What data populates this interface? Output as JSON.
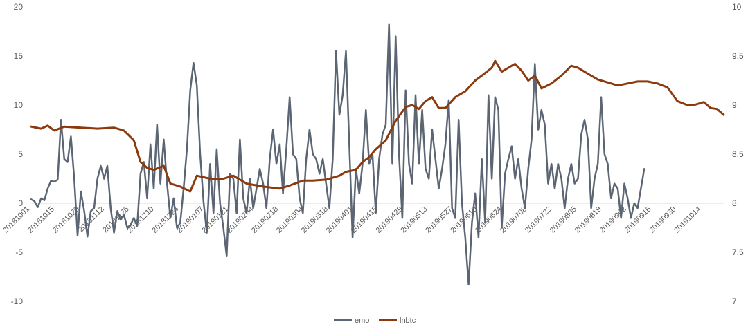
{
  "chart_data": {
    "type": "line",
    "title": "",
    "x_labels": [
      "20181001",
      "20181015",
      "20181029",
      "20181112",
      "20181126",
      "20181210",
      "20181224",
      "20190107",
      "20190121",
      "20190204",
      "20190218",
      "20190304",
      "20190318",
      "20190401",
      "20190415",
      "20190429",
      "20190513",
      "20190527",
      "20190610",
      "20190624",
      "20190708",
      "20190722",
      "20190805",
      "20190819",
      "20190902",
      "20190916",
      "20190930",
      "20191014"
    ],
    "y_left": {
      "min": -10,
      "max": 20,
      "ticks": [
        "-10",
        "-5",
        "0",
        "5",
        "10",
        "15",
        "20"
      ]
    },
    "y_right": {
      "min": 7,
      "max": 10,
      "ticks": [
        "7",
        "7.5",
        "8",
        "8.5",
        "9",
        "9.5",
        "10"
      ]
    },
    "legend_position": "bottom",
    "gridlines": false,
    "series": [
      {
        "name": "emo",
        "axis": "left",
        "color": "#5b6573",
        "points": [
          [
            0,
            0.4
          ],
          [
            2,
            0.2
          ],
          [
            4,
            -0.4
          ],
          [
            6,
            0.5
          ],
          [
            8,
            0.3
          ],
          [
            10,
            1.5
          ],
          [
            12,
            2.3
          ],
          [
            14,
            2.2
          ],
          [
            16,
            2.4
          ],
          [
            18,
            8.5
          ],
          [
            20,
            4.5
          ],
          [
            22,
            4.2
          ],
          [
            24,
            6.8
          ],
          [
            26,
            2.5
          ],
          [
            28,
            -3.3
          ],
          [
            30,
            1.2
          ],
          [
            32,
            -0.8
          ],
          [
            34,
            -3.4
          ],
          [
            36,
            -0.8
          ],
          [
            38,
            -0.5
          ],
          [
            40,
            2.5
          ],
          [
            42,
            3.8
          ],
          [
            44,
            2.5
          ],
          [
            46,
            3.8
          ],
          [
            48,
            -0.5
          ],
          [
            50,
            -3.0
          ],
          [
            52,
            -0.8
          ],
          [
            54,
            -1.7
          ],
          [
            56,
            -1.2
          ],
          [
            58,
            -2.5
          ],
          [
            60,
            -2.2
          ],
          [
            62,
            -1.5
          ],
          [
            64,
            -2.3
          ],
          [
            66,
            3.0
          ],
          [
            68,
            4.2
          ],
          [
            70,
            0.5
          ],
          [
            72,
            6.0
          ],
          [
            74,
            1.5
          ],
          [
            76,
            8.0
          ],
          [
            78,
            2.0
          ],
          [
            80,
            6.5
          ],
          [
            82,
            2.0
          ],
          [
            84,
            -1.5
          ],
          [
            86,
            0.5
          ],
          [
            88,
            -2.5
          ],
          [
            90,
            -2.0
          ],
          [
            92,
            1.5
          ],
          [
            94,
            5.5
          ],
          [
            96,
            11.5
          ],
          [
            98,
            14.3
          ],
          [
            100,
            12.0
          ],
          [
            102,
            5.0
          ],
          [
            104,
            0.2
          ],
          [
            106,
            -3.0
          ],
          [
            108,
            4.0
          ],
          [
            110,
            -1.0
          ],
          [
            112,
            5.5
          ],
          [
            114,
            0.0
          ],
          [
            116,
            -2.5
          ],
          [
            118,
            -5.4
          ],
          [
            120,
            3.0
          ],
          [
            122,
            2.5
          ],
          [
            124,
            -1.0
          ],
          [
            126,
            6.5
          ],
          [
            128,
            0.5
          ],
          [
            130,
            -1.0
          ],
          [
            132,
            2.5
          ],
          [
            134,
            -0.5
          ],
          [
            136,
            1.5
          ],
          [
            138,
            3.5
          ],
          [
            140,
            2.0
          ],
          [
            142,
            -0.5
          ],
          [
            144,
            4.5
          ],
          [
            146,
            7.5
          ],
          [
            148,
            4.0
          ],
          [
            150,
            6.0
          ],
          [
            152,
            1.0
          ],
          [
            154,
            5.5
          ],
          [
            156,
            10.8
          ],
          [
            158,
            5.0
          ],
          [
            160,
            4.5
          ],
          [
            162,
            0.5
          ],
          [
            164,
            -1.0
          ],
          [
            166,
            4.5
          ],
          [
            168,
            7.5
          ],
          [
            170,
            5.0
          ],
          [
            172,
            4.5
          ],
          [
            174,
            3.0
          ],
          [
            176,
            4.5
          ],
          [
            178,
            2.0
          ],
          [
            180,
            -0.5
          ],
          [
            182,
            4.5
          ],
          [
            184,
            15.5
          ],
          [
            186,
            9.0
          ],
          [
            188,
            11.0
          ],
          [
            190,
            15.5
          ],
          [
            192,
            6.0
          ],
          [
            194,
            -3.5
          ],
          [
            196,
            3.5
          ],
          [
            198,
            1.0
          ],
          [
            200,
            4.0
          ],
          [
            202,
            9.5
          ],
          [
            204,
            4.0
          ],
          [
            206,
            5.0
          ],
          [
            208,
            -1.0
          ],
          [
            210,
            4.5
          ],
          [
            212,
            7.0
          ],
          [
            214,
            8.0
          ],
          [
            216,
            18.2
          ],
          [
            218,
            4.0
          ],
          [
            220,
            17.0
          ],
          [
            222,
            5.0
          ],
          [
            224,
            -1.5
          ],
          [
            226,
            11.5
          ],
          [
            228,
            4.0
          ],
          [
            230,
            2.0
          ],
          [
            232,
            11.0
          ],
          [
            234,
            4.0
          ],
          [
            236,
            9.5
          ],
          [
            238,
            3.5
          ],
          [
            240,
            2.5
          ],
          [
            242,
            7.5
          ],
          [
            244,
            4.5
          ],
          [
            246,
            1.5
          ],
          [
            248,
            3.5
          ],
          [
            250,
            6.0
          ],
          [
            252,
            10.5
          ],
          [
            254,
            -0.5
          ],
          [
            256,
            -1.5
          ],
          [
            258,
            8.5
          ],
          [
            260,
            0.0
          ],
          [
            262,
            -3.5
          ],
          [
            264,
            -8.3
          ],
          [
            266,
            -2.0
          ],
          [
            268,
            1.0
          ],
          [
            270,
            -3.5
          ],
          [
            272,
            4.5
          ],
          [
            274,
            -2.0
          ],
          [
            276,
            11.0
          ],
          [
            278,
            2.5
          ],
          [
            280,
            10.8
          ],
          [
            282,
            9.5
          ],
          [
            284,
            -2.5
          ],
          [
            286,
            3.0
          ],
          [
            288,
            4.5
          ],
          [
            290,
            5.8
          ],
          [
            292,
            2.5
          ],
          [
            294,
            4.5
          ],
          [
            296,
            1.5
          ],
          [
            298,
            -0.5
          ],
          [
            300,
            3.5
          ],
          [
            302,
            6.5
          ],
          [
            304,
            14.2
          ],
          [
            306,
            7.5
          ],
          [
            308,
            9.5
          ],
          [
            310,
            8.0
          ],
          [
            312,
            2.0
          ],
          [
            314,
            4.0
          ],
          [
            316,
            1.5
          ],
          [
            318,
            4.0
          ],
          [
            320,
            2.5
          ],
          [
            322,
            -0.5
          ],
          [
            324,
            2.5
          ],
          [
            326,
            4.0
          ],
          [
            328,
            2.0
          ],
          [
            330,
            2.5
          ],
          [
            332,
            7.0
          ],
          [
            334,
            8.5
          ],
          [
            336,
            6.5
          ],
          [
            338,
            -0.5
          ],
          [
            340,
            2.5
          ],
          [
            342,
            4.0
          ],
          [
            344,
            10.8
          ],
          [
            346,
            5.0
          ],
          [
            348,
            4.0
          ],
          [
            350,
            0.5
          ],
          [
            352,
            2.0
          ],
          [
            354,
            1.5
          ],
          [
            356,
            -1.5
          ],
          [
            358,
            2.0
          ],
          [
            360,
            0.5
          ],
          [
            362,
            -1.5
          ],
          [
            364,
            0.0
          ],
          [
            366,
            -0.5
          ],
          [
            368,
            1.5
          ],
          [
            370,
            3.5
          ]
        ]
      },
      {
        "name": "lnbtc",
        "axis": "right",
        "color": "#8b3a0e",
        "points": [
          [
            0,
            8.78
          ],
          [
            6,
            8.76
          ],
          [
            10,
            8.79
          ],
          [
            14,
            8.74
          ],
          [
            20,
            8.78
          ],
          [
            30,
            8.77
          ],
          [
            40,
            8.76
          ],
          [
            50,
            8.77
          ],
          [
            56,
            8.74
          ],
          [
            62,
            8.64
          ],
          [
            66,
            8.42
          ],
          [
            70,
            8.36
          ],
          [
            74,
            8.34
          ],
          [
            80,
            8.38
          ],
          [
            84,
            8.2
          ],
          [
            90,
            8.17
          ],
          [
            96,
            8.12
          ],
          [
            100,
            8.28
          ],
          [
            108,
            8.25
          ],
          [
            116,
            8.25
          ],
          [
            122,
            8.28
          ],
          [
            130,
            8.2
          ],
          [
            140,
            8.17
          ],
          [
            150,
            8.15
          ],
          [
            156,
            8.18
          ],
          [
            164,
            8.23
          ],
          [
            170,
            8.23
          ],
          [
            178,
            8.24
          ],
          [
            186,
            8.28
          ],
          [
            190,
            8.32
          ],
          [
            196,
            8.34
          ],
          [
            200,
            8.42
          ],
          [
            204,
            8.47
          ],
          [
            208,
            8.55
          ],
          [
            214,
            8.64
          ],
          [
            220,
            8.84
          ],
          [
            226,
            8.98
          ],
          [
            230,
            9.0
          ],
          [
            234,
            8.96
          ],
          [
            238,
            9.04
          ],
          [
            242,
            9.08
          ],
          [
            246,
            8.97
          ],
          [
            250,
            8.97
          ],
          [
            256,
            9.08
          ],
          [
            262,
            9.14
          ],
          [
            268,
            9.25
          ],
          [
            272,
            9.3
          ],
          [
            278,
            9.38
          ],
          [
            280,
            9.45
          ],
          [
            284,
            9.34
          ],
          [
            288,
            9.38
          ],
          [
            292,
            9.42
          ],
          [
            296,
            9.35
          ],
          [
            300,
            9.25
          ],
          [
            304,
            9.3
          ],
          [
            308,
            9.17
          ],
          [
            314,
            9.22
          ],
          [
            320,
            9.3
          ],
          [
            326,
            9.4
          ],
          [
            330,
            9.38
          ],
          [
            336,
            9.32
          ],
          [
            342,
            9.26
          ],
          [
            348,
            9.23
          ],
          [
            354,
            9.2
          ],
          [
            360,
            9.22
          ],
          [
            366,
            9.24
          ],
          [
            372,
            9.24
          ],
          [
            378,
            9.22
          ],
          [
            384,
            9.18
          ],
          [
            390,
            9.04
          ],
          [
            396,
            9.0
          ],
          [
            400,
            9.0
          ],
          [
            406,
            9.03
          ],
          [
            410,
            8.97
          ],
          [
            414,
            8.96
          ],
          [
            418,
            8.9
          ]
        ]
      }
    ]
  }
}
